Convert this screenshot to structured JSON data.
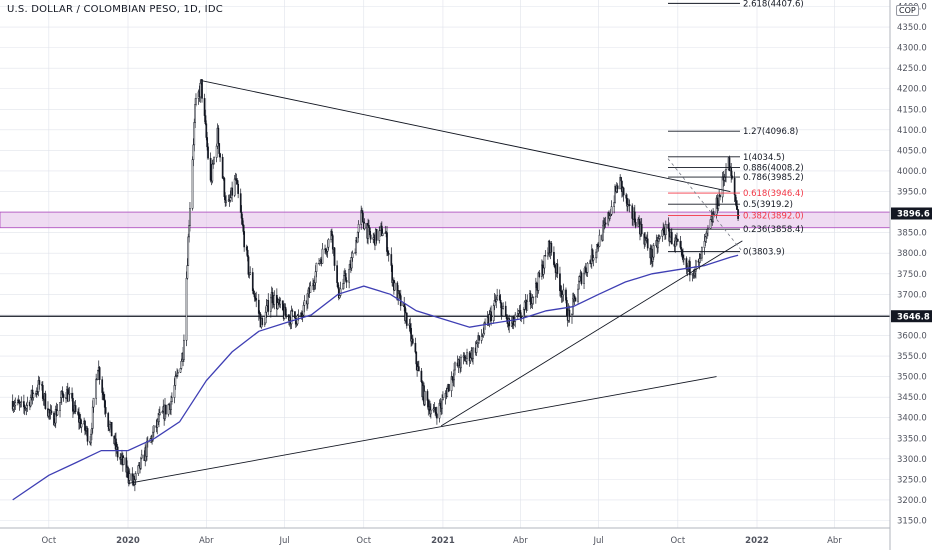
{
  "chart_data": {
    "type": "candlestick",
    "title": "U.S. DOLLAR / COLOMBIAN PESO, 1D, IDC",
    "currency": "COP",
    "ylim": [
      3130,
      4420
    ],
    "y_ticks": [
      3150,
      3200,
      3250,
      3300,
      3350,
      3400,
      3450,
      3500,
      3550,
      3600,
      3650,
      3700,
      3750,
      3800,
      3850,
      3900,
      3950,
      4000,
      4050,
      4100,
      4150,
      4200,
      4250,
      4300,
      4350,
      4400
    ],
    "x_ticks": [
      {
        "date": "2019-10-01",
        "label": "Oct"
      },
      {
        "date": "2020-01-01",
        "label": "2020"
      },
      {
        "date": "2020-04-01",
        "label": "Abr"
      },
      {
        "date": "2020-07-01",
        "label": "Jul"
      },
      {
        "date": "2020-10-01",
        "label": "Oct"
      },
      {
        "date": "2021-01-01",
        "label": "2021"
      },
      {
        "date": "2021-04-01",
        "label": "Abr"
      },
      {
        "date": "2021-07-01",
        "label": "Jul"
      },
      {
        "date": "2021-10-01",
        "label": "Oct"
      },
      {
        "date": "2022-01-01",
        "label": "2022"
      },
      {
        "date": "2022-04-01",
        "label": "Abr"
      }
    ],
    "price_path": [
      [
        "2019-08-20",
        3440
      ],
      [
        "2019-09-01",
        3420
      ],
      [
        "2019-09-20",
        3480
      ],
      [
        "2019-10-05",
        3390
      ],
      [
        "2019-10-20",
        3470
      ],
      [
        "2019-11-01",
        3410
      ],
      [
        "2019-11-18",
        3350
      ],
      [
        "2019-11-27",
        3530
      ],
      [
        "2019-12-08",
        3400
      ],
      [
        "2019-12-20",
        3310
      ],
      [
        "2019-12-31",
        3270
      ],
      [
        "2020-01-08",
        3240
      ],
      [
        "2020-01-20",
        3310
      ],
      [
        "2020-02-05",
        3390
      ],
      [
        "2020-02-20",
        3440
      ],
      [
        "2020-03-05",
        3560
      ],
      [
        "2020-03-12",
        3880
      ],
      [
        "2020-03-19",
        4150
      ],
      [
        "2020-03-26",
        4210
      ],
      [
        "2020-04-06",
        3970
      ],
      [
        "2020-04-14",
        4090
      ],
      [
        "2020-04-25",
        3900
      ],
      [
        "2020-05-05",
        3980
      ],
      [
        "2020-05-20",
        3760
      ],
      [
        "2020-06-05",
        3620
      ],
      [
        "2020-06-15",
        3700
      ],
      [
        "2020-07-01",
        3650
      ],
      [
        "2020-07-20",
        3640
      ],
      [
        "2020-08-10",
        3780
      ],
      [
        "2020-08-25",
        3850
      ],
      [
        "2020-09-01",
        3700
      ],
      [
        "2020-09-15",
        3760
      ],
      [
        "2020-09-28",
        3890
      ],
      [
        "2020-10-10",
        3830
      ],
      [
        "2020-10-25",
        3860
      ],
      [
        "2020-11-05",
        3720
      ],
      [
        "2020-11-20",
        3640
      ],
      [
        "2020-12-10",
        3450
      ],
      [
        "2020-12-22",
        3410
      ],
      [
        "2020-12-30",
        3430
      ],
      [
        "2021-01-15",
        3520
      ],
      [
        "2021-02-05",
        3560
      ],
      [
        "2021-02-20",
        3620
      ],
      [
        "2021-03-05",
        3690
      ],
      [
        "2021-03-20",
        3620
      ],
      [
        "2021-04-05",
        3660
      ],
      [
        "2021-04-20",
        3720
      ],
      [
        "2021-05-05",
        3820
      ],
      [
        "2021-05-15",
        3740
      ],
      [
        "2021-05-28",
        3640
      ],
      [
        "2021-06-10",
        3740
      ],
      [
        "2021-06-25",
        3800
      ],
      [
        "2021-07-10",
        3870
      ],
      [
        "2021-07-25",
        3980
      ],
      [
        "2021-08-05",
        3900
      ],
      [
        "2021-08-15",
        3880
      ],
      [
        "2021-09-01",
        3790
      ],
      [
        "2021-09-15",
        3860
      ],
      [
        "2021-09-30",
        3820
      ],
      [
        "2021-10-10",
        3760
      ],
      [
        "2021-10-25",
        3770
      ],
      [
        "2021-11-05",
        3850
      ],
      [
        "2021-11-20",
        3950
      ],
      [
        "2021-11-28",
        4030
      ],
      [
        "2021-12-05",
        3950
      ],
      [
        "2021-12-10",
        3896.6
      ]
    ],
    "moving_average": [
      [
        "2019-08-20",
        3200
      ],
      [
        "2019-10-01",
        3260
      ],
      [
        "2019-11-01",
        3290
      ],
      [
        "2019-12-01",
        3320
      ],
      [
        "2020-01-01",
        3320
      ],
      [
        "2020-02-01",
        3350
      ],
      [
        "2020-03-01",
        3390
      ],
      [
        "2020-04-01",
        3490
      ],
      [
        "2020-05-01",
        3560
      ],
      [
        "2020-06-01",
        3610
      ],
      [
        "2020-07-01",
        3630
      ],
      [
        "2020-08-01",
        3650
      ],
      [
        "2020-09-01",
        3700
      ],
      [
        "2020-10-01",
        3720
      ],
      [
        "2020-11-01",
        3700
      ],
      [
        "2020-12-01",
        3660
      ],
      [
        "2021-01-01",
        3640
      ],
      [
        "2021-02-01",
        3620
      ],
      [
        "2021-03-01",
        3630
      ],
      [
        "2021-04-01",
        3640
      ],
      [
        "2021-05-01",
        3660
      ],
      [
        "2021-06-01",
        3670
      ],
      [
        "2021-07-01",
        3700
      ],
      [
        "2021-08-01",
        3730
      ],
      [
        "2021-09-01",
        3750
      ],
      [
        "2021-10-01",
        3760
      ],
      [
        "2021-11-01",
        3770
      ],
      [
        "2021-12-01",
        3790
      ],
      [
        "2021-12-10",
        3795
      ]
    ],
    "price_labels": [
      {
        "label": "3896.6",
        "value": 3896.6,
        "style": "dark"
      },
      {
        "label": "3646.8",
        "value": 3646.8,
        "style": "dark"
      }
    ],
    "horizontal_lines": [
      {
        "value": 3646.8,
        "color": "#131722"
      }
    ],
    "zone": {
      "from": 3862,
      "to": 3900,
      "color": "#e1bee7"
    },
    "trendlines": [
      {
        "from": [
          "2020-03-26",
          4220
        ],
        "to": [
          "2021-12-01",
          3950
        ],
        "color": "#131722"
      },
      {
        "from": [
          "2020-01-01",
          3240
        ],
        "to": [
          "2021-11-15",
          3500
        ],
        "color": "#131722"
      },
      {
        "from": [
          "2020-12-30",
          3380
        ],
        "to": [
          "2021-12-15",
          3830
        ],
        "color": "#131722"
      }
    ],
    "fibonacci": [
      {
        "label": "2.618(4407.6)",
        "value": 4407.6,
        "color": "#131722"
      },
      {
        "label": "1.27(4096.8)",
        "value": 4096.8,
        "color": "#131722"
      },
      {
        "label": "1(4034.5)",
        "value": 4034.5,
        "color": "#131722"
      },
      {
        "label": "0.886(4008.2)",
        "value": 4008.2,
        "color": "#131722"
      },
      {
        "label": "0.786(3985.2)",
        "value": 3985.2,
        "color": "#131722"
      },
      {
        "label": "0.618(3946.4)",
        "value": 3946.4,
        "color": "#f23645"
      },
      {
        "label": "0.5(3919.2)",
        "value": 3919.2,
        "color": "#131722"
      },
      {
        "label": "0.382(3892.0)",
        "value": 3892.0,
        "color": "#f23645"
      },
      {
        "label": "0.236(3858.4)",
        "value": 3858.4,
        "color": "#131722"
      },
      {
        "label": "0(3803.9)",
        "value": 3803.9,
        "color": "#131722"
      }
    ],
    "colors": {
      "price": "#131722",
      "moving_average": "#3f3fb4",
      "grid": "#e0e3eb"
    }
  }
}
